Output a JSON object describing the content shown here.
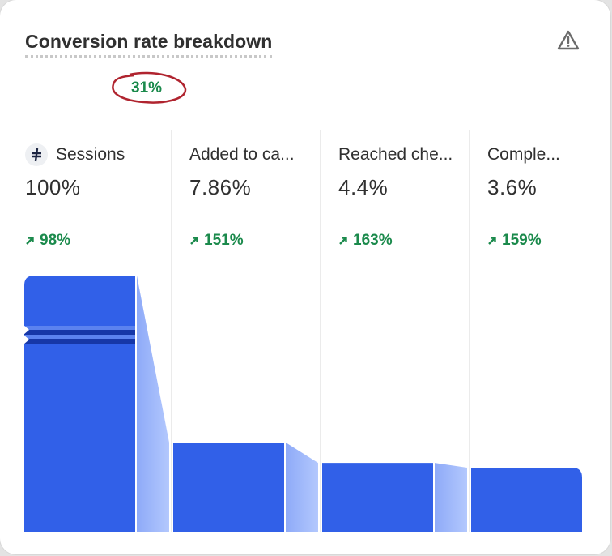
{
  "card": {
    "title": "Conversion rate breakdown",
    "overall_change": "31%",
    "warning_icon": "warning-triangle-icon"
  },
  "colors": {
    "bar": "#3160e8",
    "connector": "#9fb8fb",
    "positive": "#1b8a4c",
    "annotation": "#b0242f"
  },
  "chart_data": {
    "type": "bar",
    "title": "Conversion rate breakdown",
    "categories": [
      "Sessions",
      "Added to ca...",
      "Reached che...",
      "Comple..."
    ],
    "values": [
      100,
      7.86,
      4.4,
      3.6
    ],
    "value_labels": [
      "100%",
      "7.86%",
      "4.4%",
      "3.6%"
    ],
    "changes": [
      "98%",
      "151%",
      "163%",
      "159%"
    ],
    "axis_break": true,
    "unit": "%"
  }
}
